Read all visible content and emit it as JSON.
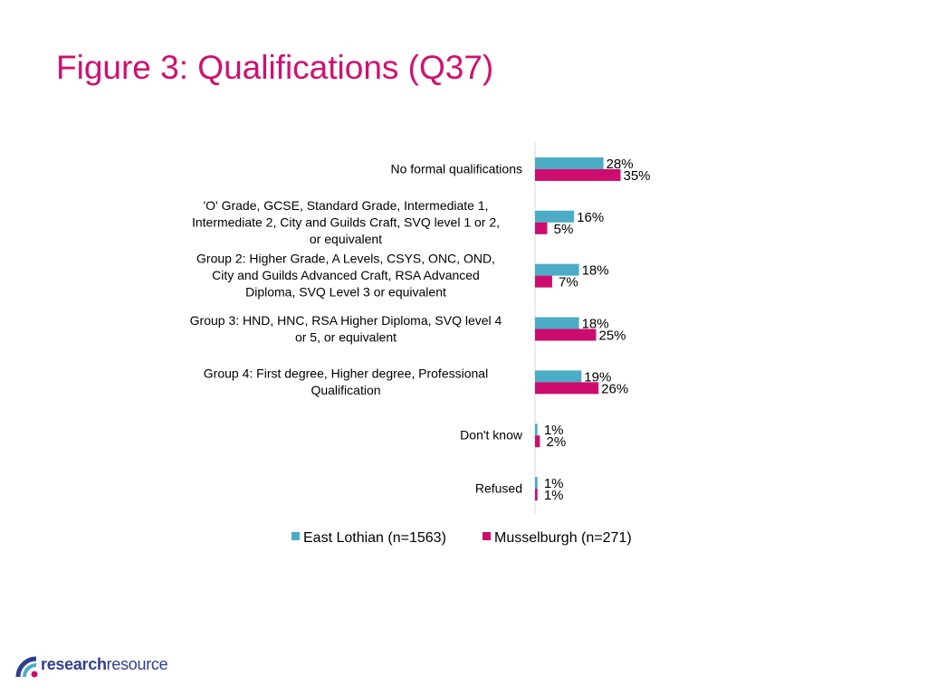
{
  "title": "Figure 3: Qualifications (Q37)",
  "colors": {
    "title": "#d01070",
    "east_lothian": "#4bacc6",
    "musselburgh": "#cc0c6e",
    "axis": "#d9d9d9",
    "logo_blue": "#2f3f8f",
    "logo_pink": "#cc0c6e"
  },
  "logo": {
    "part1": "research",
    "part2": "resource",
    "icon": "quarter-circle-arcs-icon"
  },
  "chart_data": {
    "type": "bar",
    "orientation": "horizontal",
    "title": "",
    "xlabel": "",
    "ylabel": "",
    "xlim": [
      0,
      100
    ],
    "grid": false,
    "legend_position": "bottom",
    "categories": [
      [
        "No formal qualifications"
      ],
      [
        "'O' Grade, GCSE, Standard Grade, Intermediate 1,",
        "Intermediate 2, City and Guilds Craft, SVQ level 1 or 2,",
        "or equivalent"
      ],
      [
        "Group 2: Higher Grade, A Levels, CSYS, ONC, OND,",
        "City and Guilds Advanced Craft, RSA Advanced",
        "Diploma, SVQ Level 3 or equivalent"
      ],
      [
        "Group 3: HND, HNC, RSA Higher Diploma, SVQ level 4",
        "or 5, or equivalent"
      ],
      [
        "Group 4: First degree, Higher degree, Professional",
        "Qualification"
      ],
      [
        "Don't know"
      ],
      [
        "Refused"
      ]
    ],
    "series": [
      {
        "name": "East Lothian (n=1563)",
        "values": [
          28,
          16,
          18,
          18,
          19,
          1,
          1
        ],
        "labels": [
          "28%",
          "16%",
          "18%",
          "18%",
          "19%",
          "1%",
          "1%"
        ]
      },
      {
        "name": "Musselburgh (n=271)",
        "values": [
          35,
          5,
          7,
          25,
          26,
          2,
          1
        ],
        "labels": [
          "35%",
          "5%",
          "7%",
          "25%",
          "26%",
          "2%",
          "1%"
        ]
      }
    ]
  }
}
